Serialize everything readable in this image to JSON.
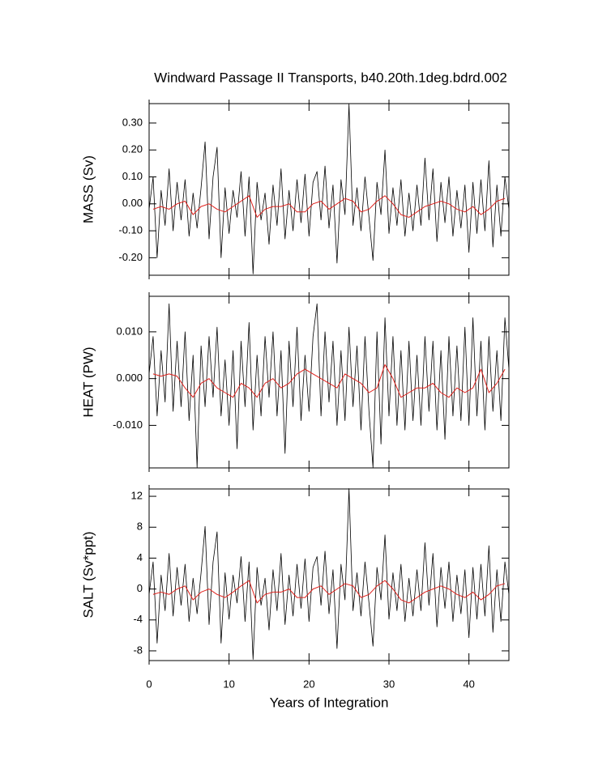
{
  "chart_data": [
    {
      "type": "line",
      "title": "Windward Passage II Transports, b40.20th.1deg.bdrd.002",
      "ylabel": "MASS (Sv)",
      "xlim": [
        0,
        45
      ],
      "xticks": [
        0,
        10,
        20,
        30,
        40
      ],
      "show_xticklabels": false,
      "ylim": [
        -0.265,
        0.372
      ],
      "yticks": [
        {
          "value": -0.2,
          "label": "-0.20"
        },
        {
          "value": -0.1,
          "label": "-0.10"
        },
        {
          "value": 0,
          "label": "0.00"
        },
        {
          "value": 0.1,
          "label": "0.10"
        },
        {
          "value": 0.2,
          "label": "0.20"
        },
        {
          "value": 0.3,
          "label": "0.30"
        }
      ],
      "series": [
        {
          "color": "#000000",
          "x": [
            0,
            0.5,
            1,
            1.5,
            2,
            2.5,
            3,
            3.5,
            4,
            4.5,
            5,
            5.5,
            6,
            6.5,
            7,
            7.5,
            8,
            8.5,
            9,
            9.5,
            10,
            10.5,
            11,
            11.5,
            12,
            12.5,
            13,
            13.5,
            14,
            14.5,
            15,
            15.5,
            16,
            16.5,
            17,
            17.5,
            18,
            18.5,
            19,
            19.5,
            20,
            20.5,
            21,
            21.5,
            22,
            22.5,
            23,
            23.5,
            24,
            24.5,
            25,
            25.5,
            26,
            26.5,
            27,
            27.5,
            28,
            28.5,
            29,
            29.5,
            30,
            30.5,
            31,
            31.5,
            32,
            32.5,
            33,
            33.5,
            34,
            34.5,
            35,
            35.5,
            36,
            36.5,
            37,
            37.5,
            38,
            38.5,
            39,
            39.5,
            40,
            40.5,
            41,
            41.5,
            42,
            42.5,
            43,
            43.5,
            44,
            44.5,
            45
          ],
          "values": [
            -0.02,
            0.1,
            -0.2,
            0.05,
            -0.08,
            0.13,
            -0.1,
            0.08,
            -0.06,
            0.09,
            -0.12,
            0.04,
            -0.09,
            0.06,
            0.23,
            -0.13,
            0.1,
            0.21,
            -0.2,
            0.06,
            -0.11,
            0.05,
            -0.05,
            0.12,
            -0.12,
            0.1,
            -0.26,
            0.08,
            -0.06,
            0.04,
            -0.15,
            0.07,
            -0.08,
            0.13,
            -0.13,
            0.05,
            -0.1,
            0.09,
            -0.07,
            0.11,
            -0.12,
            0.08,
            0.12,
            -0.06,
            0.14,
            -0.09,
            0.07,
            -0.22,
            0.09,
            -0.04,
            0.37,
            -0.08,
            0.06,
            -0.1,
            0.1,
            -0.05,
            -0.21,
            0.08,
            -0.04,
            0.2,
            -0.11,
            0.06,
            -0.08,
            0.09,
            -0.12,
            0.04,
            -0.1,
            0.07,
            -0.08,
            0.17,
            -0.06,
            0.13,
            -0.14,
            0.08,
            -0.07,
            0.1,
            -0.12,
            0.05,
            -0.09,
            0.07,
            -0.18,
            0.08,
            -0.11,
            0.09,
            -0.1,
            0.16,
            -0.16,
            0.07,
            -0.12,
            0.1,
            -0.02
          ]
        },
        {
          "color": "#e0201b",
          "x": [
            0.5,
            1.5,
            2.5,
            3.5,
            4.5,
            5.5,
            6.5,
            7.5,
            8.5,
            9.5,
            10.5,
            11.5,
            12.5,
            13.5,
            14.5,
            15.5,
            16.5,
            17.5,
            18.5,
            19.5,
            20.5,
            21.5,
            22.5,
            23.5,
            24.5,
            25.5,
            26.5,
            27.5,
            28.5,
            29.5,
            30.5,
            31.5,
            32.5,
            33.5,
            34.5,
            35.5,
            36.5,
            37.5,
            38.5,
            39.5,
            40.5,
            41.5,
            42.5,
            43.5,
            44.5
          ],
          "values": [
            -0.02,
            -0.01,
            -0.02,
            0.0,
            0.01,
            -0.04,
            -0.01,
            0.0,
            -0.02,
            -0.03,
            -0.01,
            0.01,
            0.03,
            -0.05,
            -0.02,
            -0.01,
            -0.01,
            0.0,
            -0.03,
            -0.03,
            0.0,
            0.01,
            -0.02,
            0.0,
            0.02,
            0.01,
            -0.03,
            -0.02,
            0.01,
            0.03,
            0.0,
            -0.04,
            -0.05,
            -0.03,
            -0.01,
            0.0,
            0.01,
            0.0,
            -0.02,
            -0.03,
            -0.01,
            -0.04,
            -0.02,
            0.01,
            0.02
          ]
        }
      ]
    },
    {
      "type": "line",
      "ylabel": "HEAT (PW)",
      "xlim": [
        0,
        45
      ],
      "xticks": [
        0,
        10,
        20,
        30,
        40
      ],
      "show_xticklabels": false,
      "ylim": [
        -0.0191,
        0.0176
      ],
      "yticks": [
        {
          "value": -0.01,
          "label": "-0.010"
        },
        {
          "value": 0,
          "label": "0.000"
        },
        {
          "value": 0.01,
          "label": "0.010"
        }
      ],
      "series": [
        {
          "color": "#000000",
          "x": [
            0,
            0.5,
            1,
            1.5,
            2,
            2.5,
            3,
            3.5,
            4,
            4.5,
            5,
            5.5,
            6,
            6.5,
            7,
            7.5,
            8,
            8.5,
            9,
            9.5,
            10,
            10.5,
            11,
            11.5,
            12,
            12.5,
            13,
            13.5,
            14,
            14.5,
            15,
            15.5,
            16,
            16.5,
            17,
            17.5,
            18,
            18.5,
            19,
            19.5,
            20,
            20.5,
            21,
            21.5,
            22,
            22.5,
            23,
            23.5,
            24,
            24.5,
            25,
            25.5,
            26,
            26.5,
            27,
            27.5,
            28,
            28.5,
            29,
            29.5,
            30,
            30.5,
            31,
            31.5,
            32,
            32.5,
            33,
            33.5,
            34,
            34.5,
            35,
            35.5,
            36,
            36.5,
            37,
            37.5,
            38,
            38.5,
            39,
            39.5,
            40,
            40.5,
            41,
            41.5,
            42,
            42.5,
            43,
            43.5,
            44,
            44.5,
            45
          ],
          "values": [
            0.001,
            0.009,
            -0.008,
            0.006,
            -0.005,
            0.016,
            -0.007,
            0.008,
            -0.006,
            0.01,
            -0.009,
            0.005,
            -0.019,
            0.007,
            -0.006,
            0.009,
            -0.004,
            0.011,
            -0.008,
            0.004,
            -0.01,
            0.006,
            -0.015,
            0.008,
            -0.006,
            0.012,
            -0.011,
            0.005,
            -0.008,
            0.009,
            -0.004,
            0.01,
            -0.008,
            0.006,
            -0.016,
            0.008,
            -0.006,
            0.011,
            -0.009,
            0.005,
            -0.007,
            0.009,
            0.016,
            -0.008,
            0.01,
            -0.005,
            0.008,
            -0.01,
            0.006,
            -0.009,
            0.011,
            -0.006,
            0.007,
            -0.011,
            0.009,
            -0.007,
            -0.019,
            0.01,
            -0.014,
            0.013,
            -0.008,
            0.009,
            -0.01,
            0.006,
            -0.011,
            0.008,
            -0.009,
            0.005,
            -0.01,
            0.009,
            -0.007,
            0.008,
            -0.011,
            0.006,
            -0.013,
            0.009,
            -0.008,
            0.007,
            -0.009,
            0.011,
            -0.01,
            0.013,
            -0.008,
            0.008,
            -0.011,
            0.009,
            -0.007,
            0.006,
            -0.009,
            0.013,
            0.002
          ]
        },
        {
          "color": "#e0201b",
          "x": [
            0.5,
            1.5,
            2.5,
            3.5,
            4.5,
            5.5,
            6.5,
            7.5,
            8.5,
            9.5,
            10.5,
            11.5,
            12.5,
            13.5,
            14.5,
            15.5,
            16.5,
            17.5,
            18.5,
            19.5,
            20.5,
            21.5,
            22.5,
            23.5,
            24.5,
            25.5,
            26.5,
            27.5,
            28.5,
            29.5,
            30.5,
            31.5,
            32.5,
            33.5,
            34.5,
            35.5,
            36.5,
            37.5,
            38.5,
            39.5,
            40.5,
            41.5,
            42.5,
            43.5,
            44.5
          ],
          "values": [
            0.001,
            0.0005,
            0.001,
            0.0005,
            -0.002,
            -0.004,
            -0.001,
            0.0,
            -0.002,
            -0.003,
            -0.004,
            -0.001,
            -0.002,
            -0.004,
            -0.001,
            0.0,
            -0.002,
            -0.001,
            0.001,
            0.002,
            0.001,
            0.0,
            -0.001,
            -0.002,
            0.001,
            0.0,
            -0.001,
            -0.003,
            -0.002,
            0.003,
            0.0,
            -0.004,
            -0.003,
            -0.002,
            -0.002,
            -0.001,
            -0.003,
            -0.004,
            -0.002,
            -0.003,
            -0.002,
            0.002,
            -0.003,
            -0.001,
            0.002
          ]
        }
      ]
    },
    {
      "type": "line",
      "ylabel": "SALT (Sv*ppt)",
      "xlabel": "Years of Integration",
      "xlim": [
        0,
        45
      ],
      "xticks": [
        0,
        10,
        20,
        30,
        40
      ],
      "show_xticklabels": true,
      "ylim": [
        -9.26,
        12.95
      ],
      "yticks": [
        -8,
        -4,
        0,
        4,
        8,
        12
      ],
      "series": [
        {
          "color": "#000000",
          "x": [
            0,
            0.5,
            1,
            1.5,
            2,
            2.5,
            3,
            3.5,
            4,
            4.5,
            5,
            5.5,
            6,
            6.5,
            7,
            7.5,
            8,
            8.5,
            9,
            9.5,
            10,
            10.5,
            11,
            11.5,
            12,
            12.5,
            13,
            13.5,
            14,
            14.5,
            15,
            15.5,
            16,
            16.5,
            17,
            17.5,
            18,
            18.5,
            19,
            19.5,
            20,
            20.5,
            21,
            21.5,
            22,
            22.5,
            23,
            23.5,
            24,
            24.5,
            25,
            25.5,
            26,
            26.5,
            27,
            27.5,
            28,
            28.5,
            29,
            29.5,
            30,
            30.5,
            31,
            31.5,
            32,
            32.5,
            33,
            33.5,
            34,
            34.5,
            35,
            35.5,
            36,
            36.5,
            37,
            37.5,
            38,
            38.5,
            39,
            39.5,
            40,
            40.5,
            41,
            41.5,
            42,
            42.5,
            43,
            43.5,
            44,
            44.5,
            45
          ],
          "values": [
            -0.7,
            3.5,
            -7,
            1.8,
            -2.8,
            4.6,
            -3.5,
            2.8,
            -2.1,
            3.2,
            -4.2,
            1.4,
            -3.2,
            2.1,
            8.1,
            -4.6,
            3.5,
            7.4,
            -7,
            2.1,
            -3.9,
            1.8,
            -1.8,
            4.2,
            -4.2,
            3.5,
            -9.1,
            2.8,
            -2.1,
            1.4,
            -5.3,
            2.5,
            -2.8,
            4.6,
            -4.6,
            1.8,
            -3.5,
            3.2,
            -2.5,
            3.9,
            -4.2,
            2.8,
            4.2,
            -2.1,
            4.9,
            -3.2,
            2.5,
            -7.7,
            3.2,
            -1.4,
            13,
            -2.8,
            2.1,
            -3.5,
            3.5,
            -1.8,
            -7.4,
            2.8,
            -1.4,
            7,
            -3.9,
            2.1,
            -2.8,
            3.2,
            -4.2,
            1.4,
            -3.5,
            2.5,
            -2.8,
            6,
            -2.1,
            4.6,
            -4.9,
            2.8,
            -2.5,
            3.5,
            -4.2,
            1.8,
            -3.2,
            2.5,
            -6.3,
            2.8,
            -3.9,
            3.2,
            -3.5,
            5.6,
            -5.6,
            2.5,
            -4.2,
            3.5,
            -0.7
          ]
        },
        {
          "color": "#e0201b",
          "x": [
            0.5,
            1.5,
            2.5,
            3.5,
            4.5,
            5.5,
            6.5,
            7.5,
            8.5,
            9.5,
            10.5,
            11.5,
            12.5,
            13.5,
            14.5,
            15.5,
            16.5,
            17.5,
            18.5,
            19.5,
            20.5,
            21.5,
            22.5,
            23.5,
            24.5,
            25.5,
            26.5,
            27.5,
            28.5,
            29.5,
            30.5,
            31.5,
            32.5,
            33.5,
            34.5,
            35.5,
            36.5,
            37.5,
            38.5,
            39.5,
            40.5,
            41.5,
            42.5,
            43.5,
            44.5
          ],
          "values": [
            -0.7,
            -0.4,
            -0.7,
            0,
            0.4,
            -1.4,
            -0.4,
            0,
            -0.7,
            -1.1,
            -0.4,
            0.4,
            1.1,
            -1.8,
            -0.7,
            -0.4,
            -0.4,
            0,
            -1.1,
            -1.1,
            0,
            0.4,
            -0.7,
            0,
            0.7,
            0.4,
            -1.1,
            -0.7,
            0.4,
            1.1,
            0,
            -1.4,
            -1.8,
            -1.1,
            -0.4,
            0,
            0.4,
            0,
            -0.7,
            -1.1,
            -0.4,
            -1.4,
            -0.7,
            0.4,
            0.7
          ]
        }
      ]
    }
  ]
}
